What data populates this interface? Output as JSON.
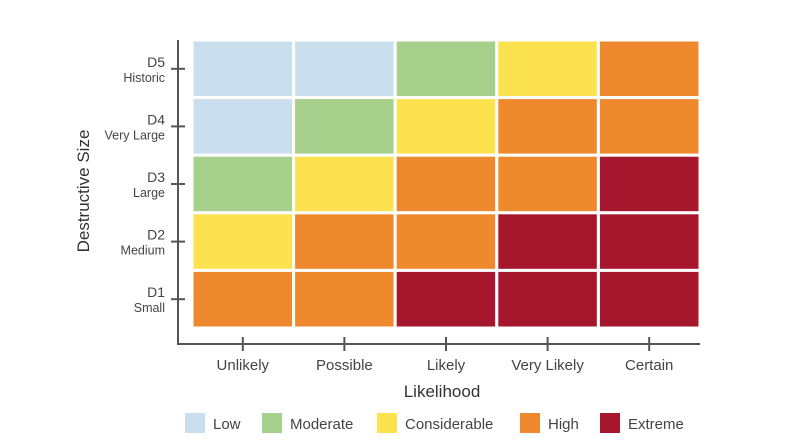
{
  "chart_data": {
    "type": "heatmap",
    "title": "",
    "xlabel": "Likelihood",
    "ylabel": "Destructive Size",
    "x_categories": [
      "Unlikely",
      "Possible",
      "Likely",
      "Very Likely",
      "Certain"
    ],
    "y_categories": [
      {
        "code": "D1",
        "name": "Small"
      },
      {
        "code": "D2",
        "name": "Medium"
      },
      {
        "code": "D3",
        "name": "Large"
      },
      {
        "code": "D4",
        "name": "Very Large"
      },
      {
        "code": "D5",
        "name": "Historic"
      }
    ],
    "levels": [
      {
        "name": "Low",
        "color": "#c9dfee"
      },
      {
        "name": "Moderate",
        "color": "#a8d08d"
      },
      {
        "name": "Considerable",
        "color": "#fde250"
      },
      {
        "name": "High",
        "color": "#ee8a2d"
      },
      {
        "name": "Extreme",
        "color": "#a6162d"
      }
    ],
    "cells": [
      [
        "High",
        "High",
        "Extreme",
        "Extreme",
        "Extreme"
      ],
      [
        "Considerable",
        "High",
        "High",
        "Extreme",
        "Extreme"
      ],
      [
        "Moderate",
        "Considerable",
        "High",
        "High",
        "Extreme"
      ],
      [
        "Low",
        "Moderate",
        "Considerable",
        "High",
        "High"
      ],
      [
        "Low",
        "Low",
        "Moderate",
        "Considerable",
        "High"
      ]
    ],
    "legend_position": "bottom",
    "grid": false
  }
}
